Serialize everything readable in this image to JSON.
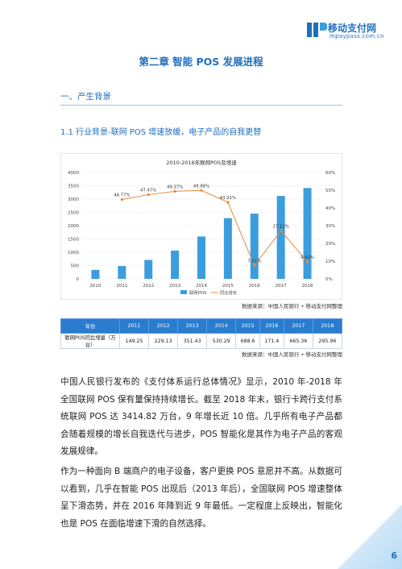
{
  "header": {
    "logo_cn": "移动支付网",
    "logo_en": "mpaypass.com.cn"
  },
  "title": "第二章  智能 POS 发展进程",
  "section": "一、产生背景",
  "subsection": "1.1  行业背景-联网 POS 增速放缓，电子产品的自我更替",
  "chart_data": {
    "type": "bar",
    "title": "2010-2018年联网POS及增速",
    "categories": [
      "2010",
      "2011",
      "2012",
      "2013",
      "2014",
      "2015",
      "2016",
      "2017",
      "2018"
    ],
    "series": [
      {
        "name": "联网POS",
        "color": "#3b9ddd",
        "values": [
          333,
          482,
          711,
          1063,
          1593,
          2282,
          2453,
          3119,
          3415
        ]
      },
      {
        "name": "同比增长",
        "color": "#e58a3a",
        "axis": "y2",
        "type": "line",
        "values": [
          null,
          44.77,
          47.47,
          49.37,
          49.88,
          43.21,
          7.51,
          27.12,
          9.62
        ],
        "value_labels": [
          null,
          "44.77%",
          "47.47%",
          "49.37%",
          "49.88%",
          "43.21%",
          "7.51%",
          "27.12%",
          "9.62%"
        ]
      }
    ],
    "ylim": [
      0,
      4000
    ],
    "yticks": [
      0,
      500,
      1000,
      1500,
      2000,
      2500,
      3000,
      3500,
      4000
    ],
    "y2lim": [
      0,
      60
    ],
    "y2ticks": [
      {
        "value": 0,
        "label": "0%"
      },
      {
        "value": 10,
        "label": "10%"
      },
      {
        "value": 20,
        "label": "20%"
      },
      {
        "value": 30,
        "label": "30%"
      },
      {
        "value": 40,
        "label": "40%"
      },
      {
        "value": 50,
        "label": "50%"
      },
      {
        "value": 60,
        "label": "60%"
      }
    ],
    "legend": "bottom"
  },
  "chart_source": "数据来源：中国人民银行 • 移动支付网整理",
  "table": {
    "header": [
      "年份",
      "2011",
      "2012",
      "2013",
      "2014",
      "2015",
      "2016",
      "2017",
      "2018"
    ],
    "rows": [
      [
        "联网POS同比增量（万台）",
        "149.25",
        "229.13",
        "351.43",
        "530.29",
        "688.6",
        "171.4",
        "665.36",
        "295.96"
      ]
    ]
  },
  "table_source": "数据来源：中国人民银行 • 移动支付网整理",
  "paragraphs": [
    "中国人民银行发布的《支付体系运行总体情况》显示，2010 年-2018 年全国联网 POS 保有量保持持续增长。截至 2018 年末，银行卡跨行支付系统联网 POS 达 3414.82 万台，9 年增长近 10 倍。几乎所有电子产品都会随着规模的增长自我迭代与进步，POS 智能化是其作为电子产品的客观发展规律。",
    "作为一种面向 B 端商户的电子设备，客户更换 POS 意愿并不高。从数据可以看到，几乎在智能 POS 出现后（2013 年后），全国联网 POS 增速整体呈下滑态势，并在 2016 年降到近 9 年最低。一定程度上反映出，智能化也是 POS 在面临增速下滑的自然选择。"
  ],
  "page_number": "6"
}
